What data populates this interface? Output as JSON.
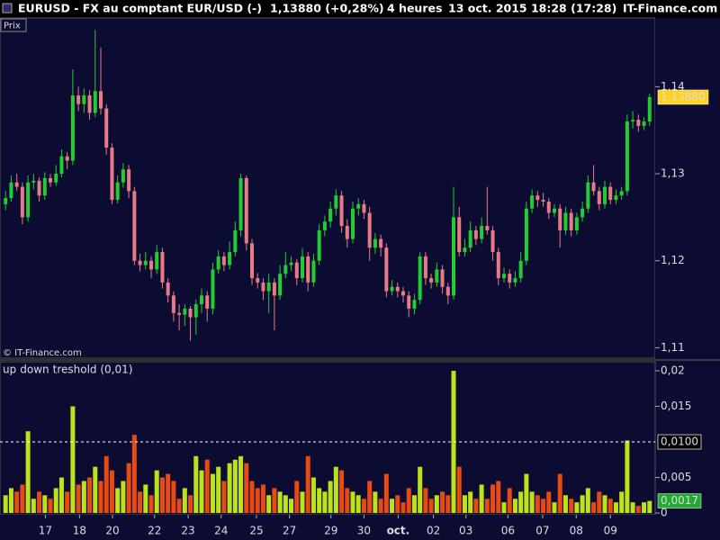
{
  "header": {
    "symbol": "EURUSD - FX au comptant EUR/USD (-)",
    "last": "1,13880 (+0,28%)",
    "interval": "4 heures",
    "datetime": "13 oct. 2015 18:28 (17:28)",
    "site": "IT-Finance.com"
  },
  "chart_data": [
    {
      "type": "candlestick",
      "label": "Prix",
      "copyright": "© IT-Finance.com",
      "up_color": "#22cc33",
      "down_color": "#e87a86",
      "last_label": "1,13880",
      "last_color": "#ffd21f",
      "xlim": [
        -1,
        116
      ],
      "ylim": [
        1.1088,
        1.1479
      ],
      "yticks": [
        {
          "value": 1.11,
          "label": "1,11"
        },
        {
          "value": 1.12,
          "label": "1,12"
        },
        {
          "value": 1.13,
          "label": "1,13"
        },
        {
          "value": 1.14,
          "label": "1,14"
        }
      ],
      "ohlc": [
        [
          1.1265,
          1.128,
          1.1258,
          1.1272
        ],
        [
          1.1272,
          1.1298,
          1.1268,
          1.129
        ],
        [
          1.129,
          1.13,
          1.128,
          1.1285
        ],
        [
          1.1285,
          1.129,
          1.1242,
          1.125
        ],
        [
          1.125,
          1.1298,
          1.1245,
          1.129
        ],
        [
          1.129,
          1.13,
          1.1282,
          1.1292
        ],
        [
          1.1292,
          1.1296,
          1.1268,
          1.1275
        ],
        [
          1.1275,
          1.1302,
          1.127,
          1.1295
        ],
        [
          1.1295,
          1.13,
          1.1285,
          1.129
        ],
        [
          1.129,
          1.131,
          1.1286,
          1.13
        ],
        [
          1.13,
          1.1328,
          1.1296,
          1.132
        ],
        [
          1.132,
          1.1325,
          1.1305,
          1.1315
        ],
        [
          1.1315,
          1.142,
          1.131,
          1.139
        ],
        [
          1.139,
          1.14,
          1.1372,
          1.138
        ],
        [
          1.138,
          1.1398,
          1.137,
          1.139
        ],
        [
          1.139,
          1.1396,
          1.1362,
          1.137
        ],
        [
          1.137,
          1.1465,
          1.1365,
          1.1395
        ],
        [
          1.1395,
          1.1445,
          1.1368,
          1.1375
        ],
        [
          1.1375,
          1.138,
          1.1322,
          1.133
        ],
        [
          1.133,
          1.1335,
          1.1265,
          1.127
        ],
        [
          1.127,
          1.1298,
          1.1266,
          1.129
        ],
        [
          1.129,
          1.1312,
          1.1284,
          1.1305
        ],
        [
          1.1305,
          1.131,
          1.1272,
          1.128
        ],
        [
          1.128,
          1.1285,
          1.1195,
          1.12
        ],
        [
          1.12,
          1.1208,
          1.1188,
          1.1195
        ],
        [
          1.1195,
          1.121,
          1.119,
          1.12
        ],
        [
          1.12,
          1.1205,
          1.118,
          1.119
        ],
        [
          1.119,
          1.1218,
          1.1185,
          1.121
        ],
        [
          1.121,
          1.1215,
          1.1168,
          1.1175
        ],
        [
          1.1175,
          1.118,
          1.1152,
          1.116
        ],
        [
          1.116,
          1.1165,
          1.113,
          1.114
        ],
        [
          1.114,
          1.115,
          1.112,
          1.1138
        ],
        [
          1.1138,
          1.115,
          1.1125,
          1.1145
        ],
        [
          1.1145,
          1.1148,
          1.1108,
          1.1135
        ],
        [
          1.1135,
          1.1155,
          1.1115,
          1.115
        ],
        [
          1.115,
          1.1168,
          1.114,
          1.116
        ],
        [
          1.116,
          1.1165,
          1.113,
          1.1145
        ],
        [
          1.1145,
          1.1198,
          1.1138,
          1.119
        ],
        [
          1.119,
          1.1212,
          1.1185,
          1.1205
        ],
        [
          1.1205,
          1.121,
          1.1188,
          1.1195
        ],
        [
          1.1195,
          1.1222,
          1.119,
          1.121
        ],
        [
          1.121,
          1.1245,
          1.1205,
          1.1235
        ],
        [
          1.1235,
          1.13,
          1.1228,
          1.1295
        ],
        [
          1.1295,
          1.1298,
          1.1212,
          1.122
        ],
        [
          1.122,
          1.1225,
          1.1172,
          1.118
        ],
        [
          1.118,
          1.1186,
          1.1168,
          1.1175
        ],
        [
          1.1175,
          1.118,
          1.1155,
          1.1165
        ],
        [
          1.1165,
          1.1185,
          1.114,
          1.1175
        ],
        [
          1.1175,
          1.118,
          1.112,
          1.116
        ],
        [
          1.116,
          1.1195,
          1.1155,
          1.1185
        ],
        [
          1.1185,
          1.121,
          1.118,
          1.1195
        ],
        [
          1.1195,
          1.1205,
          1.1188,
          1.1198
        ],
        [
          1.1198,
          1.1202,
          1.1172,
          1.118
        ],
        [
          1.118,
          1.1215,
          1.1175,
          1.1205
        ],
        [
          1.1205,
          1.121,
          1.1165,
          1.1175
        ],
        [
          1.1175,
          1.1208,
          1.117,
          1.12
        ],
        [
          1.12,
          1.1242,
          1.1195,
          1.1235
        ],
        [
          1.1235,
          1.1252,
          1.1228,
          1.1245
        ],
        [
          1.1245,
          1.1268,
          1.1238,
          1.126
        ],
        [
          1.126,
          1.1282,
          1.1252,
          1.1275
        ],
        [
          1.1275,
          1.128,
          1.1232,
          1.124
        ],
        [
          1.124,
          1.1248,
          1.1215,
          1.1225
        ],
        [
          1.1225,
          1.1268,
          1.122,
          1.126
        ],
        [
          1.126,
          1.1272,
          1.1252,
          1.1265
        ],
        [
          1.1265,
          1.127,
          1.1248,
          1.1255
        ],
        [
          1.1255,
          1.1262,
          1.12,
          1.1215
        ],
        [
          1.1215,
          1.1232,
          1.1208,
          1.1225
        ],
        [
          1.1225,
          1.123,
          1.1205,
          1.1215
        ],
        [
          1.1215,
          1.122,
          1.1158,
          1.1165
        ],
        [
          1.1165,
          1.1178,
          1.116,
          1.117
        ],
        [
          1.117,
          1.1175,
          1.1158,
          1.1165
        ],
        [
          1.1165,
          1.117,
          1.1152,
          1.116
        ],
        [
          1.116,
          1.1165,
          1.1135,
          1.1145
        ],
        [
          1.1145,
          1.1162,
          1.1138,
          1.1155
        ],
        [
          1.1155,
          1.121,
          1.115,
          1.1205
        ],
        [
          1.1205,
          1.121,
          1.1172,
          1.118
        ],
        [
          1.118,
          1.1185,
          1.1168,
          1.1175
        ],
        [
          1.1175,
          1.1198,
          1.117,
          1.119
        ],
        [
          1.119,
          1.1195,
          1.1162,
          1.117
        ],
        [
          1.117,
          1.1175,
          1.115,
          1.116
        ],
        [
          1.116,
          1.1285,
          1.1155,
          1.125
        ],
        [
          1.125,
          1.1262,
          1.1205,
          1.121
        ],
        [
          1.121,
          1.1225,
          1.1205,
          1.1215
        ],
        [
          1.1215,
          1.1245,
          1.121,
          1.1235
        ],
        [
          1.1235,
          1.124,
          1.1218,
          1.1225
        ],
        [
          1.1225,
          1.125,
          1.122,
          1.124
        ],
        [
          1.124,
          1.1285,
          1.123,
          1.1235
        ],
        [
          1.1235,
          1.124,
          1.12,
          1.121
        ],
        [
          1.121,
          1.1215,
          1.1172,
          1.118
        ],
        [
          1.118,
          1.1192,
          1.1175,
          1.1185
        ],
        [
          1.1185,
          1.119,
          1.1168,
          1.1175
        ],
        [
          1.1175,
          1.1188,
          1.117,
          1.118
        ],
        [
          1.118,
          1.121,
          1.1175,
          1.12
        ],
        [
          1.12,
          1.1268,
          1.1195,
          1.126
        ],
        [
          1.126,
          1.1282,
          1.1255,
          1.1275
        ],
        [
          1.1275,
          1.128,
          1.1262,
          1.127
        ],
        [
          1.127,
          1.1278,
          1.1262,
          1.1268
        ],
        [
          1.1268,
          1.1272,
          1.1248,
          1.1255
        ],
        [
          1.1255,
          1.1265,
          1.125,
          1.126
        ],
        [
          1.126,
          1.1265,
          1.1215,
          1.1235
        ],
        [
          1.1235,
          1.1262,
          1.123,
          1.1255
        ],
        [
          1.1255,
          1.126,
          1.1228,
          1.1235
        ],
        [
          1.1235,
          1.1255,
          1.123,
          1.125
        ],
        [
          1.125,
          1.1268,
          1.1245,
          1.126
        ],
        [
          1.126,
          1.1298,
          1.1255,
          1.129
        ],
        [
          1.129,
          1.131,
          1.1275,
          1.128
        ],
        [
          1.128,
          1.1285,
          1.1258,
          1.1265
        ],
        [
          1.1265,
          1.1292,
          1.126,
          1.1285
        ],
        [
          1.1285,
          1.129,
          1.1265,
          1.127
        ],
        [
          1.127,
          1.1282,
          1.1265,
          1.1275
        ],
        [
          1.1275,
          1.1285,
          1.127,
          1.128
        ],
        [
          1.128,
          1.1368,
          1.1275,
          1.136
        ],
        [
          1.136,
          1.1372,
          1.1352,
          1.1362
        ],
        [
          1.1362,
          1.1368,
          1.1348,
          1.1355
        ],
        [
          1.1355,
          1.1365,
          1.135,
          1.136
        ],
        [
          1.136,
          1.1392,
          1.1355,
          1.1388
        ]
      ]
    },
    {
      "type": "bar",
      "last_label": "0,0017",
      "last_color": "#22aa33",
      "threshold": {
        "label": "treshold (0,01)",
        "value": 0.01,
        "value_label": "0,0100"
      },
      "xlim": [
        -1,
        116
      ],
      "ylim": [
        -0.00025,
        0.02127
      ],
      "yticks": [
        0,
        {
          "value": 0.005,
          "label": "0,005"
        },
        {
          "value": 0.015,
          "label": "0,015"
        },
        {
          "value": 0.02,
          "label": "0,02"
        }
      ],
      "xticks": [
        {
          "value": 7.1,
          "label": "17"
        },
        {
          "value": 13.2,
          "label": "18"
        },
        {
          "value": 19.1,
          "label": "20"
        },
        {
          "value": 26.6,
          "label": "22"
        },
        {
          "value": 32.6,
          "label": "23"
        },
        {
          "value": 38.5,
          "label": "24"
        },
        {
          "value": 44.8,
          "label": "25"
        },
        {
          "value": 50.7,
          "label": "27"
        },
        {
          "value": 58.1,
          "label": "29"
        },
        {
          "value": 64.0,
          "label": "30"
        },
        {
          "value": 70.1,
          "label": "oct."
        },
        {
          "value": 76.4,
          "label": "02"
        },
        {
          "value": 82.2,
          "label": "03"
        },
        {
          "value": 89.7,
          "label": "06"
        },
        {
          "value": 95.9,
          "label": "07"
        },
        {
          "value": 101.9,
          "label": "08"
        },
        {
          "value": 108.0,
          "label": "09"
        }
      ],
      "series": [
        {
          "name": "up",
          "color": "#bde21a",
          "values": [
            0.0025,
            0.0035,
            null,
            null,
            0.0115,
            0.002,
            null,
            0.0025,
            null,
            0.0035,
            0.005,
            null,
            0.015,
            null,
            0.0045,
            null,
            0.0065,
            null,
            null,
            null,
            0.0035,
            0.0045,
            null,
            null,
            null,
            0.004,
            null,
            0.006,
            null,
            null,
            null,
            null,
            0.0035,
            null,
            0.008,
            0.006,
            null,
            0.0055,
            0.0065,
            null,
            0.007,
            0.0075,
            0.008,
            null,
            null,
            null,
            null,
            0.0025,
            null,
            0.003,
            0.0025,
            0.002,
            null,
            0.003,
            null,
            0.005,
            0.0035,
            0.003,
            0.0045,
            0.0065,
            null,
            null,
            0.003,
            0.0025,
            null,
            null,
            0.003,
            null,
            null,
            0.002,
            null,
            null,
            null,
            0.0025,
            0.0065,
            null,
            null,
            0.0025,
            null,
            null,
            0.02,
            null,
            0.0025,
            0.003,
            null,
            0.004,
            null,
            null,
            null,
            0.0015,
            null,
            0.002,
            0.003,
            0.0055,
            0.003,
            null,
            null,
            null,
            0.0015,
            null,
            0.0025,
            null,
            0.0015,
            0.0025,
            0.0035,
            null,
            null,
            0.0025,
            null,
            0.0015,
            0.003,
            0.0102,
            0.0015,
            null,
            0.0015,
            0.0017
          ]
        },
        {
          "name": "down",
          "color": "#e84a14",
          "values": [
            null,
            null,
            0.003,
            0.004,
            null,
            null,
            0.003,
            null,
            0.002,
            null,
            null,
            0.003,
            null,
            0.004,
            null,
            0.005,
            null,
            0.0045,
            0.008,
            0.006,
            null,
            null,
            0.007,
            0.011,
            0.003,
            null,
            0.0025,
            null,
            0.005,
            0.0055,
            0.0045,
            0.002,
            null,
            0.0025,
            null,
            null,
            0.0075,
            null,
            null,
            0.0045,
            null,
            null,
            null,
            0.007,
            0.0045,
            0.0035,
            0.004,
            null,
            0.0035,
            null,
            null,
            null,
            0.0045,
            null,
            0.008,
            null,
            null,
            null,
            null,
            null,
            0.006,
            0.0035,
            null,
            null,
            0.002,
            0.0045,
            null,
            0.002,
            0.0055,
            null,
            0.0025,
            0.0015,
            0.0035,
            null,
            null,
            0.0035,
            0.002,
            null,
            0.003,
            0.0025,
            null,
            0.0065,
            null,
            null,
            0.002,
            null,
            0.002,
            0.004,
            0.0045,
            null,
            0.0035,
            null,
            null,
            null,
            null,
            0.0025,
            0.002,
            0.003,
            null,
            0.0055,
            null,
            0.002,
            null,
            null,
            null,
            0.0015,
            0.003,
            null,
            0.002,
            null,
            null,
            null,
            null,
            0.001,
            null,
            null
          ]
        }
      ]
    }
  ]
}
